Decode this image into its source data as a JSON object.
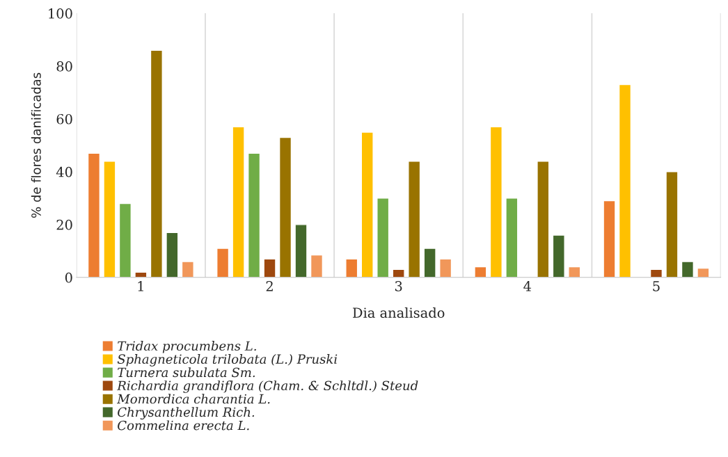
{
  "chart_data": {
    "type": "bar",
    "xlabel": "Dia analisado",
    "ylabel": "% de flores danificadas",
    "categories": [
      "1",
      "2",
      "3",
      "4",
      "5"
    ],
    "ylim": [
      0,
      100
    ],
    "yticks": [
      0,
      20,
      40,
      60,
      80,
      100
    ],
    "grid": "x",
    "legend": "bottom",
    "series": [
      {
        "name": "Tridax procumbens L.",
        "color": "#ed7d31",
        "values": [
          47,
          11,
          7,
          4,
          29
        ]
      },
      {
        "name": "Sphagneticola trilobata (L.) Pruski",
        "color": "#ffc000",
        "values": [
          44,
          57,
          55,
          57,
          73
        ]
      },
      {
        "name": "Turnera subulata Sm.",
        "color": "#70ad47",
        "values": [
          28,
          47,
          30,
          30,
          null
        ]
      },
      {
        "name": "Richardia grandiflora (Cham. & Schltdl.) Steud",
        "color": "#9e480e",
        "values": [
          2,
          7,
          3,
          null,
          3
        ]
      },
      {
        "name": "Momordica charantia L.",
        "color": "#997300",
        "values": [
          86,
          53,
          44,
          44,
          40
        ]
      },
      {
        "name": "Chrysanthellum Rich.",
        "color": "#43682b",
        "values": [
          17,
          20,
          11,
          16,
          6
        ]
      },
      {
        "name": "Commelina erecta L.",
        "color": "#f1975a",
        "values": [
          6,
          8.5,
          7,
          4,
          3.5
        ]
      }
    ]
  }
}
